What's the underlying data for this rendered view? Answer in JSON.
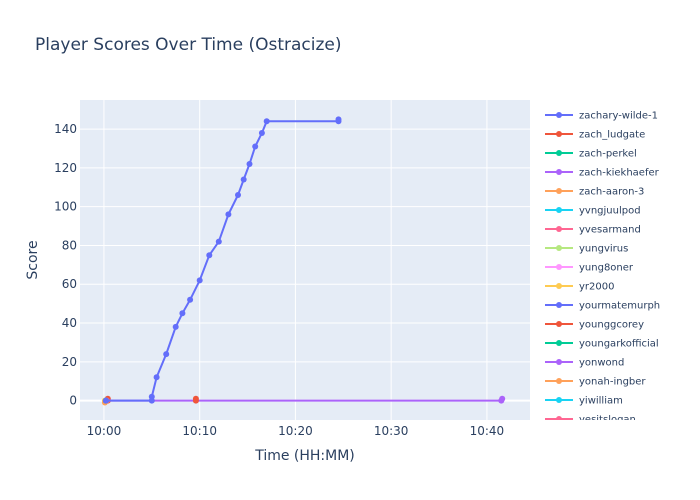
{
  "chart_data": {
    "type": "line",
    "title": "Player Scores Over Time (Ostracize)",
    "xlabel": "Time (HH:MM)",
    "ylabel": "Score",
    "x_range_minutes": [
      -2.5,
      44.5
    ],
    "ylim": [
      -10,
      155
    ],
    "x_ticks": [
      {
        "minutes": 0,
        "label": "10:00"
      },
      {
        "minutes": 10,
        "label": "10:10"
      },
      {
        "minutes": 20,
        "label": "10:20"
      },
      {
        "minutes": 30,
        "label": "10:30"
      },
      {
        "minutes": 40,
        "label": "10:40"
      }
    ],
    "y_ticks": [
      0,
      20,
      40,
      60,
      80,
      100,
      120,
      140
    ],
    "grid": true,
    "legend_position": "right",
    "series": [
      {
        "name": "zachary-wilde-1",
        "color": "#636efa",
        "points": [
          [
            0.2,
            0
          ],
          [
            5.0,
            0
          ],
          [
            5.0,
            2
          ],
          [
            5.5,
            12
          ],
          [
            6.5,
            24
          ],
          [
            7.5,
            38
          ],
          [
            8.2,
            45
          ],
          [
            9.0,
            52
          ],
          [
            10.0,
            62
          ],
          [
            11.0,
            75
          ],
          [
            12.0,
            82
          ],
          [
            13.0,
            96
          ],
          [
            14.0,
            106
          ],
          [
            14.6,
            114
          ],
          [
            15.2,
            122
          ],
          [
            15.8,
            131
          ],
          [
            16.5,
            138
          ],
          [
            17.0,
            144
          ],
          [
            24.5,
            144
          ],
          [
            24.5,
            145
          ]
        ]
      },
      {
        "name": "zach_ludgate",
        "color": "#ef553b",
        "points": [
          [
            9.6,
            1
          ],
          [
            9.6,
            0
          ]
        ]
      },
      {
        "name": "zach-perkel",
        "color": "#00cc96",
        "points": [
          [
            0.2,
            0
          ]
        ]
      },
      {
        "name": "zach-kiekhaefer",
        "color": "#ab63fa",
        "points": [
          [
            0.2,
            0
          ],
          [
            41.5,
            0
          ],
          [
            41.6,
            1
          ]
        ]
      },
      {
        "name": "zach-aaron-3",
        "color": "#ffa15a",
        "points": [
          [
            0.1,
            -1
          ],
          [
            0.2,
            0
          ]
        ]
      },
      {
        "name": "yvngjuulpod",
        "color": "#19d3f3",
        "points": [
          [
            0.2,
            0
          ]
        ]
      },
      {
        "name": "yvesarmand",
        "color": "#ff6692",
        "points": [
          [
            0.3,
            0
          ]
        ]
      },
      {
        "name": "yungvirus",
        "color": "#b6e880",
        "points": [
          [
            0.2,
            0
          ]
        ]
      },
      {
        "name": "yung8oner",
        "color": "#ff97ff",
        "points": [
          [
            0.2,
            0
          ]
        ]
      },
      {
        "name": "yr2000",
        "color": "#fecb52",
        "points": [
          [
            0.1,
            0
          ]
        ]
      },
      {
        "name": "yourmatemurph",
        "color": "#636efa",
        "points": [
          [
            0.2,
            0
          ]
        ]
      },
      {
        "name": "younggcorey",
        "color": "#ef553b",
        "points": [
          [
            0.4,
            1
          ],
          [
            0.4,
            0
          ]
        ]
      },
      {
        "name": "youngarkofficial",
        "color": "#00cc96",
        "points": [
          [
            0.2,
            0
          ]
        ]
      },
      {
        "name": "yonwond",
        "color": "#ab63fa",
        "points": [
          [
            0.2,
            0
          ]
        ]
      },
      {
        "name": "yonah-ingber",
        "color": "#ffa15a",
        "points": [
          [
            0.2,
            0
          ]
        ]
      },
      {
        "name": "yiwilliam",
        "color": "#19d3f3",
        "points": [
          [
            0.2,
            0
          ]
        ]
      },
      {
        "name": "yesitslogan",
        "color": "#ff6692",
        "points": [
          [
            0.2,
            0
          ]
        ]
      }
    ]
  }
}
